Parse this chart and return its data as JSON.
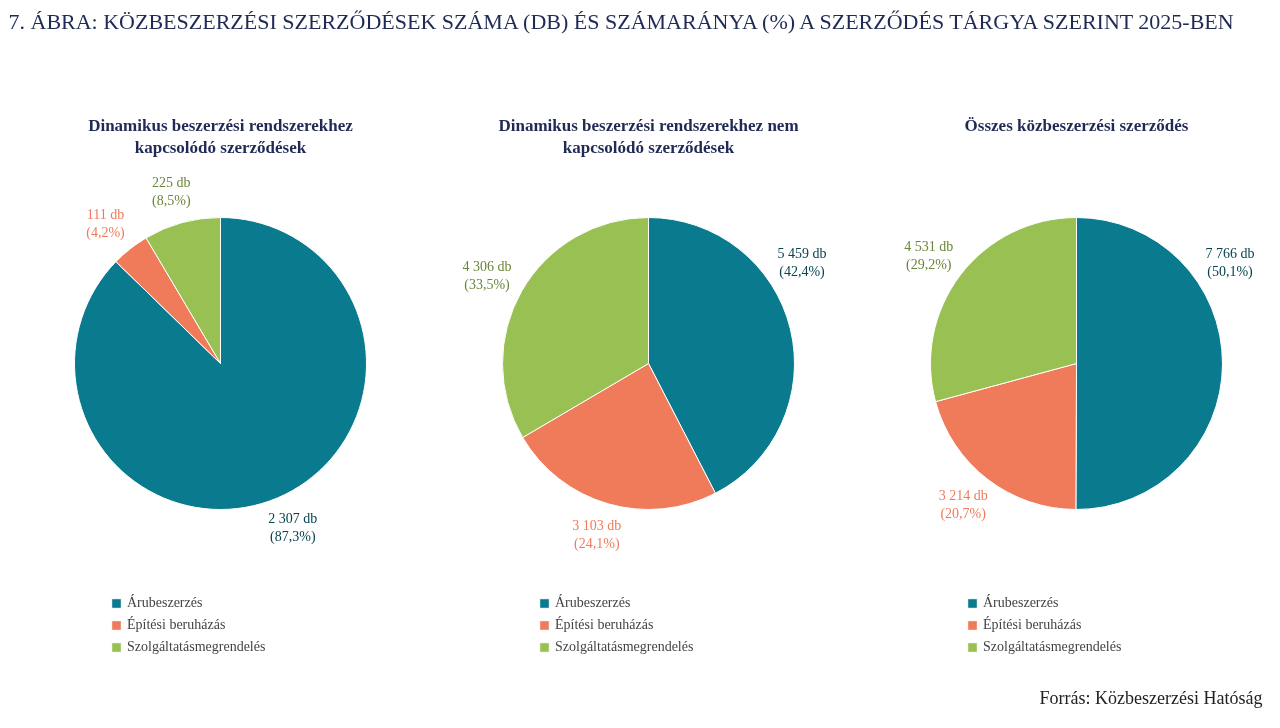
{
  "chart_data": [
    {
      "type": "pie",
      "title": "Dinamikus beszerzési rendszerekhez kapcsolódó szerződések",
      "annotations": [
        "7. ÁBRA: KÖZBESZERZÉSI SZERZŐDÉSEK SZÁMA (DB) ÉS SZÁMARÁNYA (%) A SZERZŐDÉS TÁRGYA SZERINT 2025-BEN"
      ],
      "categories": [
        "Árubeszerzés",
        "Építési beruházás",
        "Szolgáltatásmegrendelés"
      ],
      "values": [
        2307,
        111,
        225
      ],
      "colors": [
        "#0a7a8e",
        "#ef7b5a",
        "#98c052"
      ],
      "value_labels": [
        "2 307 db\n(87,3%)",
        "111 db\n(4,2%)",
        "225 db\n(8,5%)"
      ],
      "legend": "bottom"
    },
    {
      "type": "pie",
      "title": "Dinamikus beszerzési rendszerekhez nem kapcsolódó szerződések",
      "categories": [
        "Árubeszerzés",
        "Építési beruházás",
        "Szolgáltatásmegrendelés"
      ],
      "values": [
        5459,
        3103,
        4306
      ],
      "colors": [
        "#0a7a8e",
        "#ef7b5a",
        "#98c052"
      ],
      "value_labels": [
        "5 459 db\n(42,4%)",
        "3 103 db\n(24,1%)",
        "4 306 db\n(33,5%)"
      ],
      "legend": "bottom"
    },
    {
      "type": "pie",
      "title": "Összes közbeszerzési szerződés",
      "annotations": [
        "Forrás: Közbeszerzési Hatóság"
      ],
      "categories": [
        "Árubeszerzés",
        "Építési beruházás",
        "Szolgáltatásmegrendelés"
      ],
      "values": [
        7766,
        3214,
        4531
      ],
      "colors": [
        "#0a7a8e",
        "#ef7b5a",
        "#98c052"
      ],
      "value_labels": [
        "7 766 db\n(50,1%)",
        "3 214 db\n(20,7%)",
        "4 531 db\n(29,2%)"
      ],
      "legend": "bottom"
    }
  ]
}
